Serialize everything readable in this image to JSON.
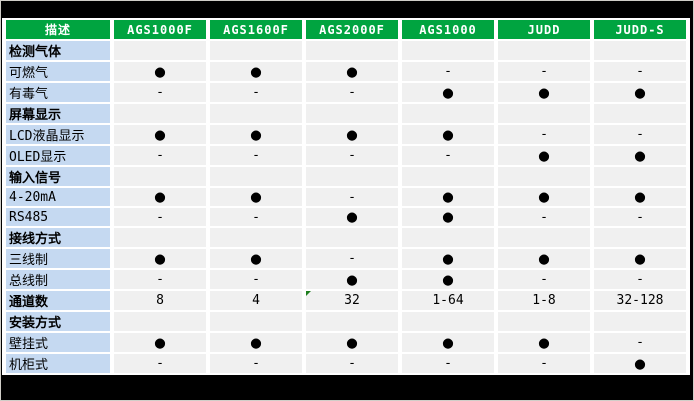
{
  "colors": {
    "header_bg": "#00A440",
    "header_text": "#FFFFFF",
    "row_label_bg": "#C5D9F1",
    "cell_bg": "#F0F0F0",
    "frame_bg": "#000000",
    "comment_marker": "#1E7E1E"
  },
  "symbols": {
    "supported": "●",
    "not_supported": "-"
  },
  "table": {
    "columns": [
      "描述",
      "AGS1000F",
      "AGS1600F",
      "AGS2000F",
      "AGS1000",
      "JUDD",
      "JUDD-S"
    ],
    "rows": [
      {
        "label": "检测气体",
        "bold": true,
        "section": true,
        "values": [
          "",
          "",
          "",
          "",
          "",
          ""
        ]
      },
      {
        "label": "可燃气",
        "bold": false,
        "section": false,
        "values": [
          "●",
          "●",
          "●",
          "-",
          "-",
          "-"
        ]
      },
      {
        "label": "有毒气",
        "bold": false,
        "section": false,
        "values": [
          "-",
          "-",
          "-",
          "●",
          "●",
          "●"
        ]
      },
      {
        "label": "屏幕显示",
        "bold": true,
        "section": true,
        "values": [
          "",
          "",
          "",
          "",
          "",
          ""
        ]
      },
      {
        "label": "LCD液晶显示",
        "bold": false,
        "section": false,
        "values": [
          "●",
          "●",
          "●",
          "●",
          "-",
          "-"
        ]
      },
      {
        "label": "OLED显示",
        "bold": false,
        "section": false,
        "values": [
          "-",
          "-",
          "-",
          "-",
          "●",
          "●"
        ]
      },
      {
        "label": "输入信号",
        "bold": true,
        "section": true,
        "values": [
          "",
          "",
          "",
          "",
          "",
          ""
        ]
      },
      {
        "label": "4-20mA",
        "bold": false,
        "section": false,
        "values": [
          "●",
          "●",
          "-",
          "●",
          "●",
          "●"
        ]
      },
      {
        "label": "RS485",
        "bold": false,
        "section": false,
        "values": [
          "-",
          "-",
          "●",
          "●",
          "-",
          "-"
        ]
      },
      {
        "label": "接线方式",
        "bold": true,
        "section": true,
        "values": [
          "",
          "",
          "",
          "",
          "",
          ""
        ]
      },
      {
        "label": "三线制",
        "bold": false,
        "section": false,
        "values": [
          "●",
          "●",
          "-",
          "●",
          "●",
          "●"
        ]
      },
      {
        "label": "总线制",
        "bold": false,
        "section": false,
        "values": [
          "-",
          "-",
          "●",
          "●",
          "-",
          "-"
        ]
      },
      {
        "label": "通道数",
        "bold": true,
        "section": false,
        "values": [
          "8",
          "4",
          "32",
          "1-64",
          "1-8",
          "32-128"
        ]
      },
      {
        "label": "安装方式",
        "bold": true,
        "section": true,
        "values": [
          "",
          "",
          "",
          "",
          "",
          ""
        ]
      },
      {
        "label": "壁挂式",
        "bold": false,
        "section": false,
        "values": [
          "●",
          "●",
          "●",
          "●",
          "●",
          "-"
        ]
      },
      {
        "label": "机柜式",
        "bold": false,
        "section": false,
        "values": [
          "-",
          "-",
          "-",
          "-",
          "-",
          "●"
        ]
      }
    ]
  },
  "annotations": {
    "comment_marker": {
      "row": 12,
      "col": 2
    }
  }
}
